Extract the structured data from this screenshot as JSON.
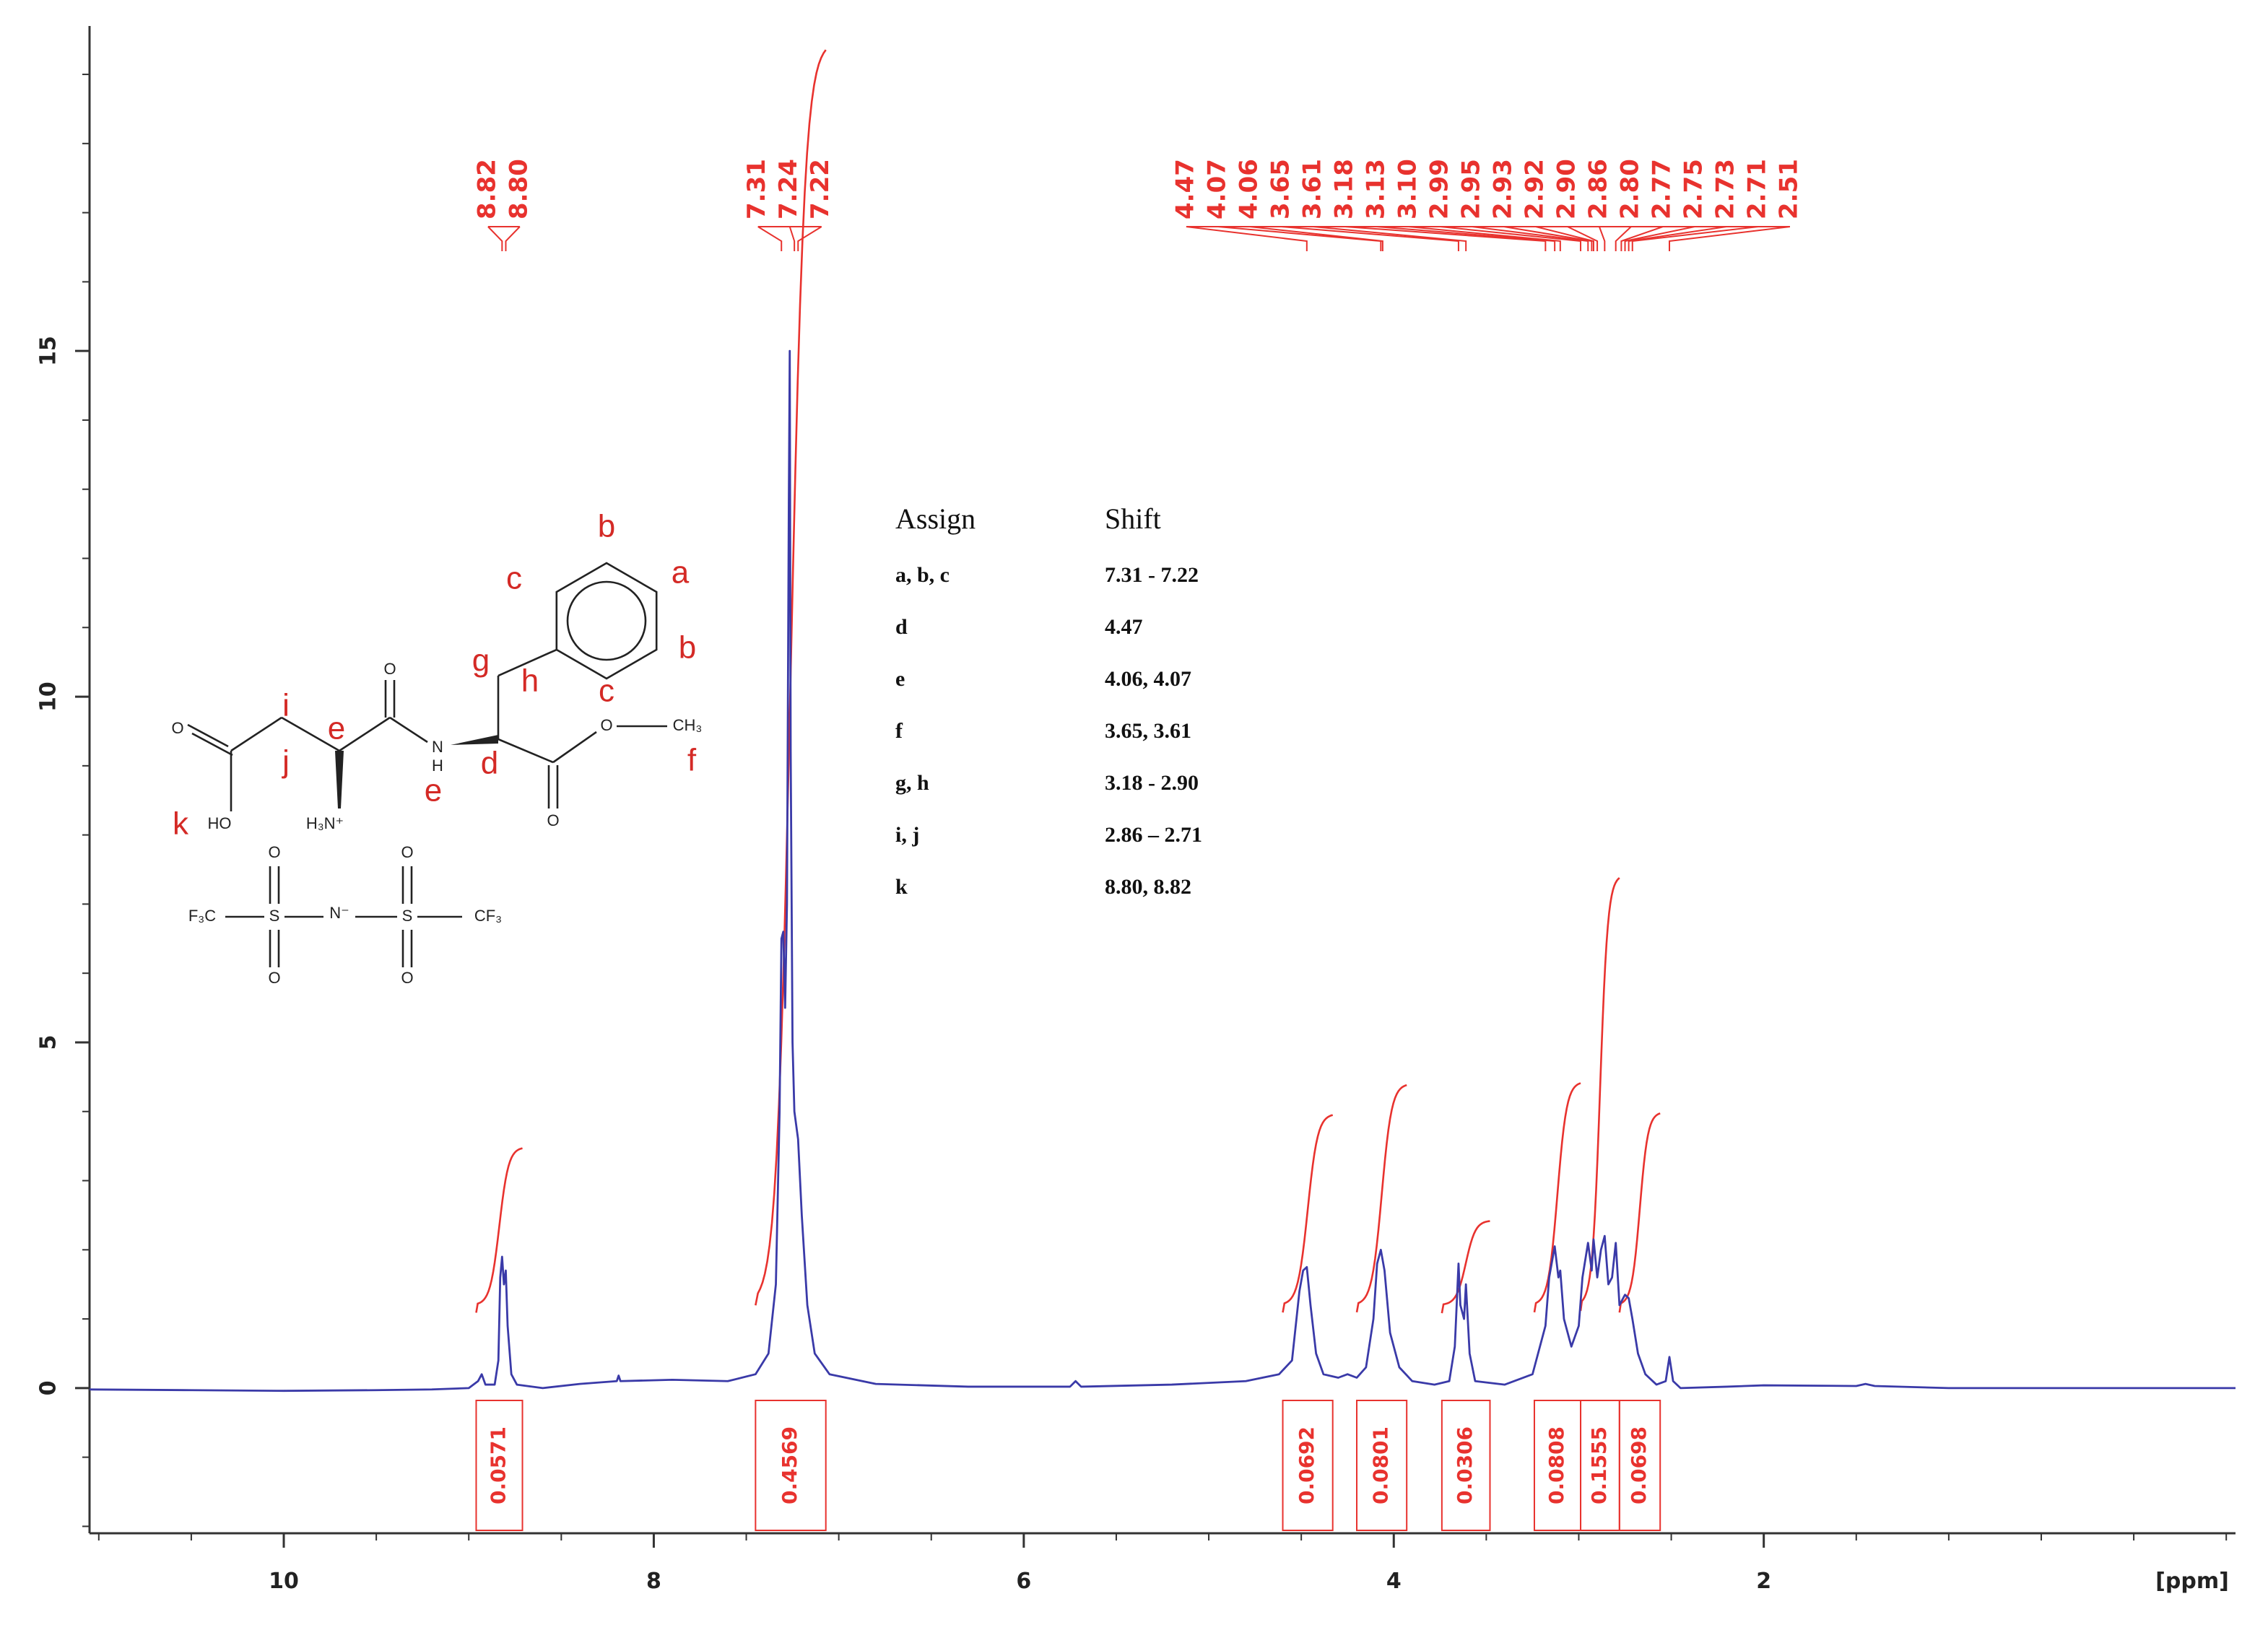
{
  "chart_data": {
    "type": "nmr",
    "x_label": "[ppm]",
    "xlim": [
      11.05,
      -0.55
    ],
    "xticks": [
      10,
      8,
      6,
      4,
      2
    ],
    "ylim": [
      -2.1,
      19.7
    ],
    "yticks": [
      0,
      5,
      10,
      15
    ],
    "grid": false,
    "spectrum": {
      "color": "#3a3aa8",
      "x": [
        11.05,
        10.5,
        10,
        9.5,
        9.2,
        9.0,
        8.95,
        8.93,
        8.91,
        8.86,
        8.84,
        8.83,
        8.82,
        8.81,
        8.8,
        8.79,
        8.77,
        8.74,
        8.6,
        8.4,
        8.2,
        8.19,
        8.18,
        7.9,
        7.6,
        7.45,
        7.38,
        7.34,
        7.32,
        7.31,
        7.3,
        7.29,
        7.28,
        7.27,
        7.265,
        7.26,
        7.25,
        7.24,
        7.22,
        7.2,
        7.17,
        7.13,
        7.05,
        6.8,
        6.3,
        5.75,
        5.72,
        5.69,
        5.2,
        4.8,
        4.62,
        4.55,
        4.51,
        4.49,
        4.47,
        4.45,
        4.42,
        4.38,
        4.3,
        4.25,
        4.2,
        4.15,
        4.11,
        4.09,
        4.07,
        4.05,
        4.02,
        3.97,
        3.9,
        3.78,
        3.7,
        3.67,
        3.65,
        3.64,
        3.62,
        3.61,
        3.59,
        3.56,
        3.4,
        3.25,
        3.18,
        3.16,
        3.14,
        3.13,
        3.11,
        3.1,
        3.08,
        3.04,
        3.0,
        2.98,
        2.95,
        2.93,
        2.92,
        2.9,
        2.88,
        2.86,
        2.84,
        2.82,
        2.8,
        2.78,
        2.76,
        2.75,
        2.73,
        2.71,
        2.68,
        2.64,
        2.58,
        2.53,
        2.51,
        2.49,
        2.45,
        2.2,
        2.0,
        1.5,
        1.45,
        1.4,
        1.0,
        0.5,
        -0.55
      ],
      "y": [
        -0.02,
        -0.03,
        -0.04,
        -0.03,
        -0.02,
        0.0,
        0.1,
        0.2,
        0.05,
        0.05,
        0.4,
        1.6,
        1.9,
        1.5,
        1.7,
        0.9,
        0.2,
        0.05,
        0.0,
        0.06,
        0.1,
        0.18,
        0.1,
        0.12,
        0.1,
        0.2,
        0.5,
        1.5,
        4.0,
        6.5,
        6.6,
        5.5,
        7.0,
        12.8,
        15.0,
        9.2,
        5.0,
        4.0,
        3.6,
        2.5,
        1.2,
        0.5,
        0.2,
        0.06,
        0.02,
        0.02,
        0.1,
        0.02,
        0.05,
        0.1,
        0.2,
        0.4,
        1.4,
        1.7,
        1.75,
        1.2,
        0.5,
        0.2,
        0.15,
        0.2,
        0.15,
        0.3,
        1.0,
        1.8,
        2.0,
        1.7,
        0.8,
        0.3,
        0.1,
        0.05,
        0.1,
        0.6,
        1.8,
        1.2,
        1.0,
        1.5,
        0.5,
        0.1,
        0.05,
        0.2,
        0.9,
        1.6,
        1.9,
        2.05,
        1.6,
        1.7,
        1.0,
        0.6,
        0.9,
        1.6,
        2.1,
        1.7,
        2.15,
        1.6,
        2.0,
        2.2,
        1.5,
        1.6,
        2.1,
        1.2,
        1.3,
        1.35,
        1.3,
        1.0,
        0.5,
        0.2,
        0.05,
        0.1,
        0.45,
        0.1,
        0.0,
        0.02,
        0.04,
        0.03,
        0.06,
        0.03,
        0.0,
        0.0,
        0.0
      ]
    },
    "integral_color": "#e8322e",
    "integrals": [
      {
        "value": 0.0571,
        "range": [
          8.96,
          8.71
        ]
      },
      {
        "value": 0.4569,
        "range": [
          7.45,
          7.07
        ]
      },
      {
        "value": 0.0692,
        "range": [
          4.6,
          4.33
        ]
      },
      {
        "value": 0.0801,
        "range": [
          4.2,
          3.93
        ]
      },
      {
        "value": 0.0306,
        "range": [
          3.74,
          3.48
        ]
      },
      {
        "value": 0.0808,
        "range": [
          3.24,
          2.99
        ]
      },
      {
        "value": 0.1555,
        "range": [
          2.99,
          2.78
        ]
      },
      {
        "value": 0.0698,
        "range": [
          2.78,
          2.56
        ]
      }
    ],
    "peak_labels": [
      8.82,
      {
        "value": 8.8,
        "label": "8.80"
      },
      7.31,
      7.24,
      7.22,
      4.47,
      4.07,
      4.06,
      3.65,
      3.61,
      3.18,
      3.13,
      {
        "value": 3.1,
        "label": "3.10"
      },
      2.99,
      2.95,
      2.93,
      2.92,
      {
        "value": 2.9,
        "label": "2.90"
      },
      2.86,
      {
        "value": 2.8,
        "label": "2.80"
      },
      2.77,
      2.75,
      2.73,
      2.71,
      2.51
    ]
  },
  "assignment_table": {
    "headers": [
      "Assign",
      "Shift"
    ],
    "rows": [
      [
        "a, b, c",
        "7.31 - 7.22"
      ],
      [
        "d",
        "4.47"
      ],
      [
        "e",
        "4.06, 4.07"
      ],
      [
        "f",
        "3.65, 3.61"
      ],
      [
        "g, h",
        "3.18 - 2.90"
      ],
      [
        "i, j",
        "2.86 – 2.71"
      ],
      [
        "k",
        "8.80, 8.82"
      ]
    ]
  },
  "structure": {
    "labels": [
      "b",
      "a",
      "c",
      "b",
      "c",
      "g",
      "h",
      "i",
      "e",
      "j",
      "d",
      "e",
      "f",
      "k",
      "O",
      "HO",
      "H₃N⁺",
      "O",
      "N",
      "H",
      "O",
      "O",
      "CH₃",
      "F₃C",
      "S",
      "O",
      "O",
      "N⁻",
      "S",
      "O",
      "O",
      "CF₃"
    ]
  }
}
